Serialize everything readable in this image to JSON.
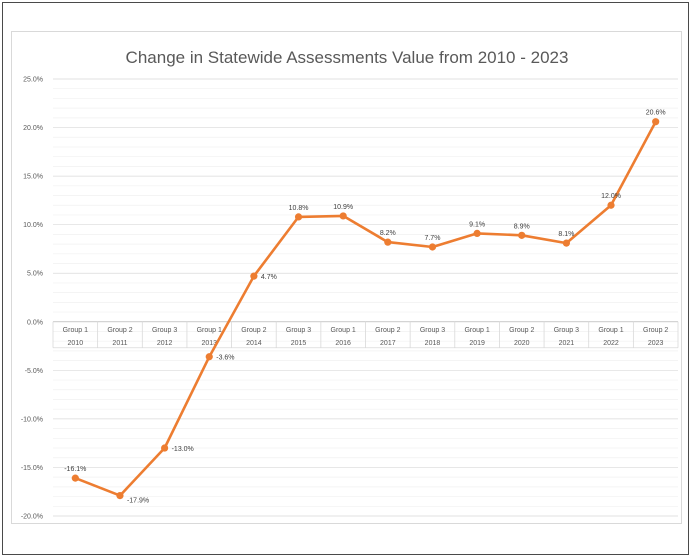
{
  "chart_data": {
    "type": "line",
    "title": "Change in Statewide Assessments Value from 2010 - 2023",
    "xlabel": "",
    "ylabel": "",
    "categories_level1": [
      "Group 1",
      "Group 2",
      "Group 3",
      "Group 1",
      "Group 2",
      "Group 3",
      "Group 1",
      "Group 2",
      "Group 3",
      "Group 1",
      "Group 2",
      "Group 3",
      "Group 1",
      "Group 2"
    ],
    "categories_level2": [
      "2010",
      "2011",
      "2012",
      "2013",
      "2014",
      "2015",
      "2016",
      "2017",
      "2018",
      "2019",
      "2020",
      "2021",
      "2022",
      "2023"
    ],
    "values": [
      -16.1,
      -17.9,
      -13.0,
      -3.6,
      4.7,
      10.8,
      10.9,
      8.2,
      7.7,
      9.1,
      8.9,
      8.1,
      12.0,
      20.6
    ],
    "data_labels": [
      "-16.1%",
      "-17.9%",
      "-13.0%",
      "-3.6%",
      "4.7%",
      "10.8%",
      "10.9%",
      "8.2%",
      "7.7%",
      "9.1%",
      "8.9%",
      "8.1%",
      "12.0%",
      "20.6%"
    ],
    "ylim": [
      -20,
      25
    ],
    "yticks": [
      "25.0%",
      "20.0%",
      "15.0%",
      "10.0%",
      "5.0%",
      "0.0%",
      "-5.0%",
      "-10.0%",
      "-15.0%",
      "-20.0%"
    ],
    "grid": true,
    "colors": {
      "line": "#ed7d31",
      "grid": "#e6e6e6",
      "text": "#595959"
    }
  }
}
